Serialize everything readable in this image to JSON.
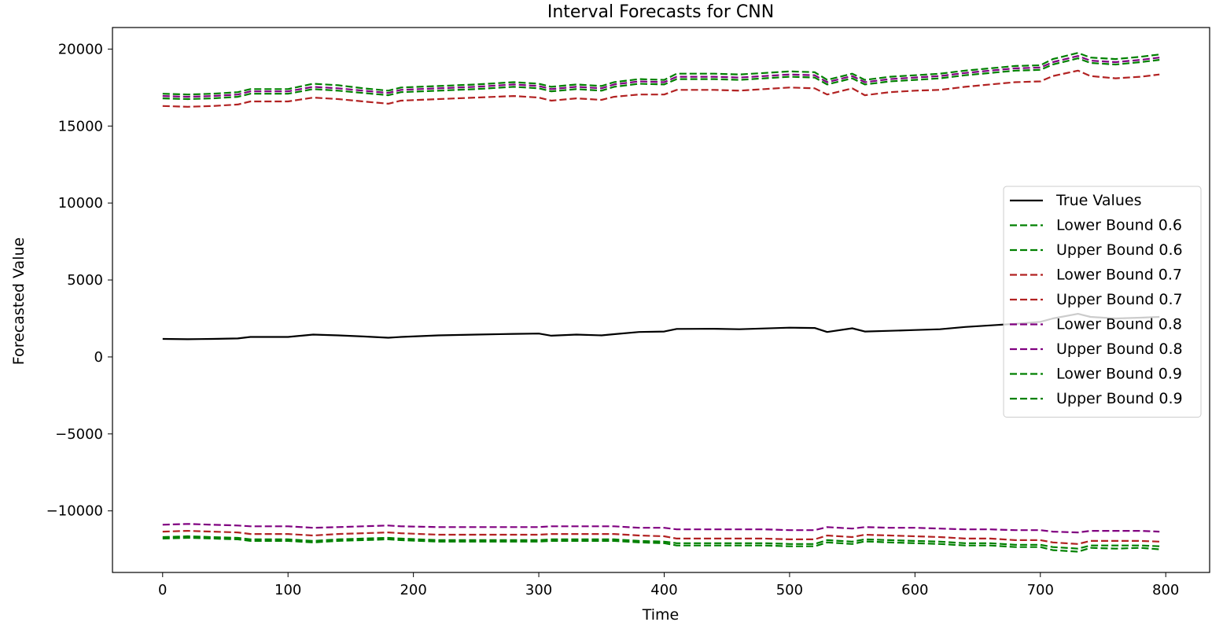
{
  "chart_data": {
    "type": "line",
    "title": "Interval Forecasts for CNN",
    "xlabel": "Time",
    "ylabel": "Forecasted Value",
    "xlim": [
      -40,
      835
    ],
    "ylim": [
      -14000,
      21400
    ],
    "xticks": [
      0,
      100,
      200,
      300,
      400,
      500,
      600,
      700,
      800
    ],
    "yticks": [
      -10000,
      -5000,
      0,
      5000,
      10000,
      15000,
      20000
    ],
    "ytick_labels": [
      "−10000",
      "−5000",
      "0",
      "5000",
      "10000",
      "15000",
      "20000"
    ],
    "legend_position": "center-right",
    "x": [
      0,
      20,
      40,
      60,
      70,
      100,
      120,
      140,
      160,
      180,
      190,
      220,
      250,
      280,
      300,
      310,
      330,
      350,
      360,
      380,
      400,
      410,
      440,
      460,
      480,
      500,
      520,
      530,
      550,
      560,
      580,
      600,
      620,
      640,
      660,
      680,
      700,
      710,
      730,
      740,
      760,
      780,
      795
    ],
    "series": [
      {
        "name": "True Values",
        "color": "#000000",
        "dash": "solid",
        "values": [
          1170,
          1150,
          1170,
          1200,
          1300,
          1300,
          1450,
          1400,
          1330,
          1250,
          1300,
          1400,
          1450,
          1500,
          1520,
          1380,
          1450,
          1400,
          1480,
          1620,
          1650,
          1820,
          1830,
          1800,
          1850,
          1900,
          1880,
          1620,
          1860,
          1650,
          1700,
          1750,
          1800,
          1950,
          2050,
          2150,
          2280,
          2500,
          2800,
          2600,
          2500,
          2550,
          2600
        ]
      },
      {
        "name": "Lower Bound 0.6",
        "color": "#008000",
        "dash": "dashed",
        "values": [
          -11800,
          -11750,
          -11800,
          -11850,
          -11950,
          -11950,
          -12050,
          -11950,
          -11900,
          -11850,
          -11900,
          -12000,
          -12000,
          -12000,
          -12000,
          -11950,
          -11950,
          -11950,
          -11950,
          -12050,
          -12100,
          -12250,
          -12250,
          -12250,
          -12250,
          -12300,
          -12300,
          -12050,
          -12150,
          -11980,
          -12050,
          -12100,
          -12150,
          -12250,
          -12250,
          -12350,
          -12350,
          -12550,
          -12650,
          -12400,
          -12450,
          -12400,
          -12500
        ]
      },
      {
        "name": "Upper Bound 0.6",
        "color": "#008000",
        "dash": "dashed",
        "values": [
          16800,
          16750,
          16800,
          16900,
          17100,
          17100,
          17400,
          17300,
          17150,
          17000,
          17200,
          17300,
          17400,
          17550,
          17450,
          17250,
          17400,
          17300,
          17550,
          17750,
          17700,
          18050,
          18050,
          18000,
          18100,
          18200,
          18150,
          17700,
          18100,
          17700,
          17900,
          18000,
          18100,
          18300,
          18450,
          18600,
          18650,
          19000,
          19400,
          19100,
          19000,
          19150,
          19300
        ]
      },
      {
        "name": "Lower Bound 0.7",
        "color": "#b22222",
        "dash": "dashed",
        "values": [
          -11350,
          -11300,
          -11350,
          -11400,
          -11500,
          -11500,
          -11600,
          -11500,
          -11450,
          -11400,
          -11450,
          -11550,
          -11550,
          -11550,
          -11550,
          -11500,
          -11500,
          -11500,
          -11500,
          -11600,
          -11650,
          -11800,
          -11800,
          -11800,
          -11800,
          -11850,
          -11850,
          -11600,
          -11700,
          -11550,
          -11600,
          -11650,
          -11700,
          -11800,
          -11800,
          -11900,
          -11900,
          -12050,
          -12150,
          -11950,
          -11950,
          -11950,
          -12000
        ]
      },
      {
        "name": "Upper Bound 0.7",
        "color": "#b22222",
        "dash": "dashed",
        "values": [
          16300,
          16250,
          16300,
          16400,
          16600,
          16600,
          16850,
          16750,
          16600,
          16450,
          16650,
          16750,
          16850,
          16950,
          16850,
          16650,
          16800,
          16700,
          16900,
          17050,
          17050,
          17350,
          17350,
          17300,
          17400,
          17500,
          17450,
          17050,
          17450,
          17000,
          17200,
          17300,
          17350,
          17550,
          17700,
          17850,
          17900,
          18250,
          18600,
          18250,
          18100,
          18200,
          18350
        ]
      },
      {
        "name": "Lower Bound 0.8",
        "color": "#800080",
        "dash": "dashed",
        "values": [
          -10900,
          -10850,
          -10900,
          -10950,
          -11000,
          -11000,
          -11100,
          -11050,
          -11000,
          -10950,
          -11000,
          -11050,
          -11050,
          -11050,
          -11050,
          -11000,
          -11000,
          -11000,
          -11000,
          -11100,
          -11100,
          -11200,
          -11200,
          -11200,
          -11200,
          -11250,
          -11250,
          -11050,
          -11150,
          -11050,
          -11100,
          -11100,
          -11150,
          -11200,
          -11200,
          -11250,
          -11250,
          -11350,
          -11400,
          -11300,
          -11300,
          -11300,
          -11350
        ]
      },
      {
        "name": "Upper Bound 0.8",
        "color": "#800080",
        "dash": "dashed",
        "values": [
          16950,
          16900,
          16950,
          17050,
          17250,
          17250,
          17550,
          17450,
          17300,
          17150,
          17350,
          17450,
          17550,
          17700,
          17600,
          17400,
          17550,
          17450,
          17700,
          17900,
          17850,
          18200,
          18200,
          18150,
          18250,
          18350,
          18300,
          17850,
          18250,
          17850,
          18050,
          18150,
          18250,
          18450,
          18600,
          18750,
          18800,
          19150,
          19550,
          19250,
          19150,
          19300,
          19450
        ]
      },
      {
        "name": "Lower Bound 0.9",
        "color": "#008000",
        "dash": "dashed",
        "values": [
          -11700,
          -11650,
          -11700,
          -11750,
          -11850,
          -11850,
          -11950,
          -11850,
          -11800,
          -11750,
          -11800,
          -11900,
          -11900,
          -11900,
          -11900,
          -11850,
          -11850,
          -11850,
          -11850,
          -11950,
          -12000,
          -12100,
          -12100,
          -12100,
          -12100,
          -12150,
          -12150,
          -11900,
          -12000,
          -11850,
          -11900,
          -11950,
          -12000,
          -12100,
          -12100,
          -12200,
          -12200,
          -12350,
          -12450,
          -12250,
          -12250,
          -12250,
          -12300
        ]
      },
      {
        "name": "Upper Bound 0.9",
        "color": "#008000",
        "dash": "dashed",
        "values": [
          17100,
          17050,
          17100,
          17200,
          17400,
          17400,
          17750,
          17650,
          17450,
          17300,
          17500,
          17600,
          17700,
          17850,
          17750,
          17550,
          17700,
          17600,
          17850,
          18050,
          18000,
          18400,
          18400,
          18350,
          18450,
          18550,
          18500,
          18000,
          18400,
          18000,
          18200,
          18300,
          18400,
          18600,
          18750,
          18900,
          18950,
          19350,
          19750,
          19450,
          19350,
          19500,
          19650
        ]
      }
    ]
  }
}
